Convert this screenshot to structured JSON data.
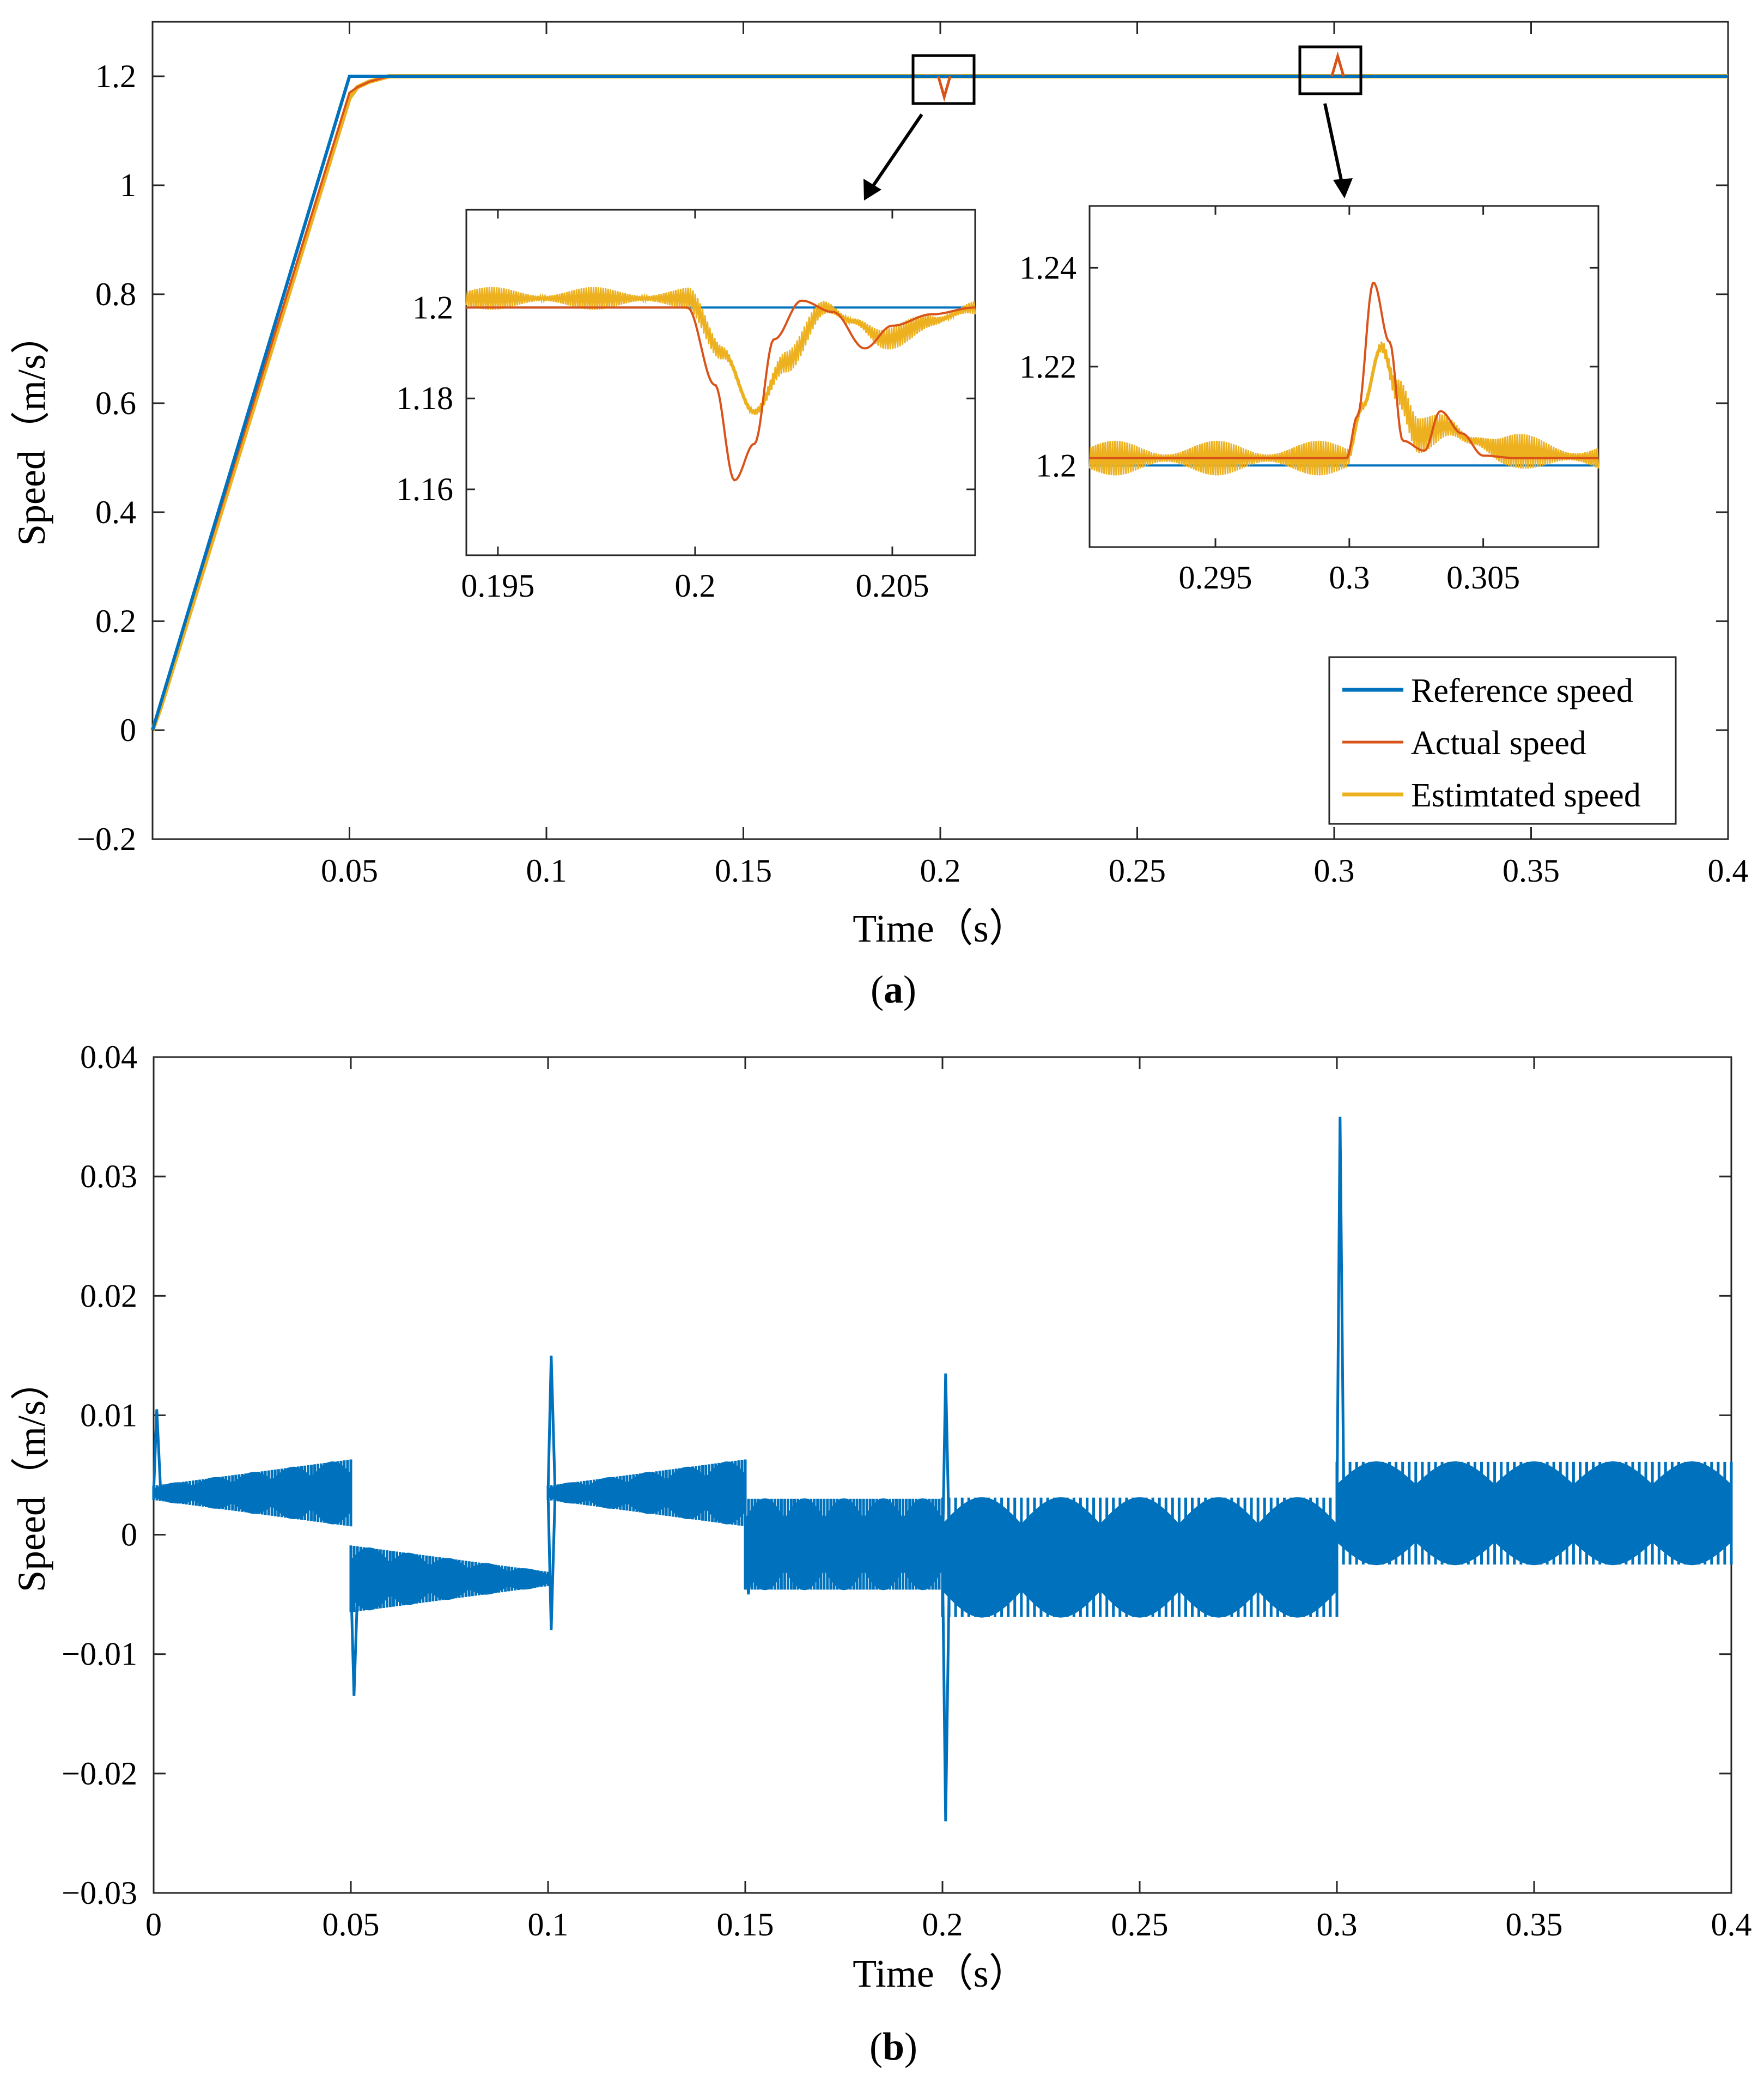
{
  "colors": {
    "reference": "#0072BD",
    "actual": "#D95319",
    "estimated": "#EDB120",
    "error": "#0072BD",
    "axis": "#262626",
    "grid_bg": "#ffffff"
  },
  "chart_data": [
    {
      "id": "a",
      "type": "line",
      "caption_label": "a",
      "caption_open": "(",
      "caption_close": ")",
      "xlabel": "Time（s）",
      "ylabel": "Speed（m/s）",
      "xlim": [
        0,
        0.4
      ],
      "ylim": [
        -0.2,
        1.3
      ],
      "xticks": [
        0.05,
        0.1,
        0.15,
        0.2,
        0.25,
        0.3,
        0.35,
        0.4
      ],
      "xtick_labels": [
        "0.05",
        "0.1",
        "0.15",
        "0.2",
        "0.25",
        "0.3",
        "0.35",
        "0.4"
      ],
      "yticks": [
        -0.2,
        0,
        0.2,
        0.4,
        0.6,
        0.8,
        1,
        1.2
      ],
      "ytick_labels": [
        "−0.2",
        "0",
        "0.2",
        "0.4",
        "0.6",
        "0.8",
        "1",
        "1.2"
      ],
      "legend_position": "bottom-right",
      "grid": false,
      "series": [
        {
          "name": "Reference speed",
          "x": [
            0,
            0.05,
            0.4
          ],
          "y": [
            0,
            1.2,
            1.2
          ]
        },
        {
          "name": "Actual speed",
          "x": [
            0,
            0.002,
            0.05,
            0.052,
            0.055,
            0.06,
            0.4
          ],
          "y": [
            0,
            0.05,
            1.17,
            1.18,
            1.19,
            1.2,
            1.2
          ]
        },
        {
          "name": "Estimtated speed",
          "x": [
            0,
            0.002,
            0.05,
            0.052,
            0.055,
            0.06,
            0.4
          ],
          "y": [
            0,
            0.04,
            1.16,
            1.18,
            1.19,
            1.2,
            1.2
          ]
        }
      ],
      "insets": [
        {
          "id": "zoom-1",
          "xlim": [
            0.1942,
            0.2071
          ],
          "ylim": [
            1.1455,
            1.2215
          ],
          "xticks": [
            0.195,
            0.2,
            0.205
          ],
          "xtick_labels": [
            "0.195",
            "0.2",
            "0.205"
          ],
          "yticks": [
            1.16,
            1.18,
            1.2
          ],
          "ytick_labels": [
            "1.16",
            "1.18",
            "1.2"
          ],
          "reference": 1.2,
          "actual": {
            "x": [
              0.1942,
              0.1998,
              0.2005,
              0.201,
              0.2015,
              0.202,
              0.2027,
              0.2035,
              0.2043,
              0.205,
              0.206,
              0.2071
            ],
            "y": [
              1.2,
              1.2,
              1.183,
              1.162,
              1.17,
              1.193,
              1.2015,
              1.199,
              1.191,
              1.196,
              1.1985,
              1.2
            ]
          },
          "estimated": {
            "x": [
              0.1942,
              0.1998,
              0.2007,
              0.2015,
              0.2023,
              0.2033,
              0.204,
              0.2048,
              0.206,
              0.2071
            ],
            "y": [
              1.202,
              1.202,
              1.19,
              1.177,
              1.188,
              1.2,
              1.197,
              1.193,
              1.197,
              1.2
            ]
          },
          "ripple_amplitude": 0.0025
        },
        {
          "id": "zoom-2",
          "xlim": [
            0.2903,
            0.3093
          ],
          "ylim": [
            1.1835,
            1.2525
          ],
          "xticks": [
            0.295,
            0.3,
            0.305
          ],
          "xtick_labels": [
            "0.295",
            "0.3",
            "0.305"
          ],
          "yticks": [
            1.2,
            1.22,
            1.24
          ],
          "ytick_labels": [
            "1.2",
            "1.22",
            "1.24"
          ],
          "reference": 1.2,
          "actual": {
            "x": [
              0.2903,
              0.2999,
              0.3003,
              0.3009,
              0.3015,
              0.302,
              0.3028,
              0.3034,
              0.3042,
              0.305,
              0.3062,
              0.3093
            ],
            "y": [
              1.2015,
              1.2015,
              1.21,
              1.237,
              1.225,
              1.205,
              1.203,
              1.211,
              1.2065,
              1.202,
              1.2015,
              1.2015
            ]
          },
          "estimated": {
            "x": [
              0.2903,
              0.2999,
              0.3005,
              0.3012,
              0.3018,
              0.3026,
              0.3036,
              0.3046,
              0.3058,
              0.3093
            ],
            "y": [
              1.2015,
              1.2015,
              1.212,
              1.224,
              1.215,
              1.206,
              1.208,
              1.205,
              1.203,
              1.2015
            ]
          },
          "ripple_amplitude": 0.0035
        }
      ]
    },
    {
      "id": "b",
      "type": "line",
      "caption_label": "b",
      "caption_open": "(",
      "caption_close": ")",
      "xlabel": "Time（s）",
      "ylabel": "Speed（m/s）",
      "xlim": [
        0,
        0.4
      ],
      "ylim": [
        -0.03,
        0.04
      ],
      "xticks": [
        0,
        0.05,
        0.1,
        0.15,
        0.2,
        0.25,
        0.3,
        0.35,
        0.4
      ],
      "xtick_labels": [
        "0",
        "0.05",
        "0.1",
        "0.15",
        "0.2",
        "0.25",
        "0.3",
        "0.35",
        "0.4"
      ],
      "yticks": [
        -0.03,
        -0.02,
        -0.01,
        0,
        0.01,
        0.02,
        0.03,
        0.04
      ],
      "ytick_labels": [
        "−0.03",
        "−0.02",
        "−0.01",
        "0",
        "0.01",
        "0.02",
        "0.03",
        "0.04"
      ],
      "grid": false,
      "series": [
        {
          "name": "",
          "segments": [
            {
              "x0": 0.0,
              "x1": 0.05,
              "center": 0.0035,
              "amp_start": 0.0006,
              "amp_end": 0.0028
            },
            {
              "x0": 0.05,
              "x1": 0.1,
              "center": -0.0037,
              "amp_start": 0.0028,
              "amp_end": 0.0006
            },
            {
              "x0": 0.1,
              "x1": 0.15,
              "center": 0.0035,
              "amp_start": 0.0006,
              "amp_end": 0.0028
            },
            {
              "x0": 0.15,
              "x1": 0.2,
              "center": -0.0008,
              "amp_start": 0.0038,
              "amp_end": 0.0038
            },
            {
              "x0": 0.2,
              "x1": 0.3,
              "center": -0.0019,
              "amp_start": 0.005,
              "amp_end": 0.005
            },
            {
              "x0": 0.3,
              "x1": 0.4,
              "center": 0.0018,
              "amp_start": 0.0043,
              "amp_end": 0.0043
            }
          ],
          "spikes": [
            {
              "x": 0.0,
              "y": 0.0105
            },
            {
              "x": 0.05,
              "y": -0.0135
            },
            {
              "x": 0.1,
              "y": 0.015
            },
            {
              "x": 0.1,
              "y": -0.008
            },
            {
              "x": 0.15,
              "y": -0.005
            },
            {
              "x": 0.2,
              "y": 0.0135
            },
            {
              "x": 0.2,
              "y": -0.024
            },
            {
              "x": 0.3,
              "y": 0.035
            }
          ]
        }
      ]
    }
  ],
  "legend": {
    "items": [
      {
        "label": "Reference speed",
        "color_key": "reference"
      },
      {
        "label": "Actual speed",
        "color_key": "actual"
      },
      {
        "label": "Estimtated speed",
        "color_key": "estimated"
      }
    ]
  }
}
